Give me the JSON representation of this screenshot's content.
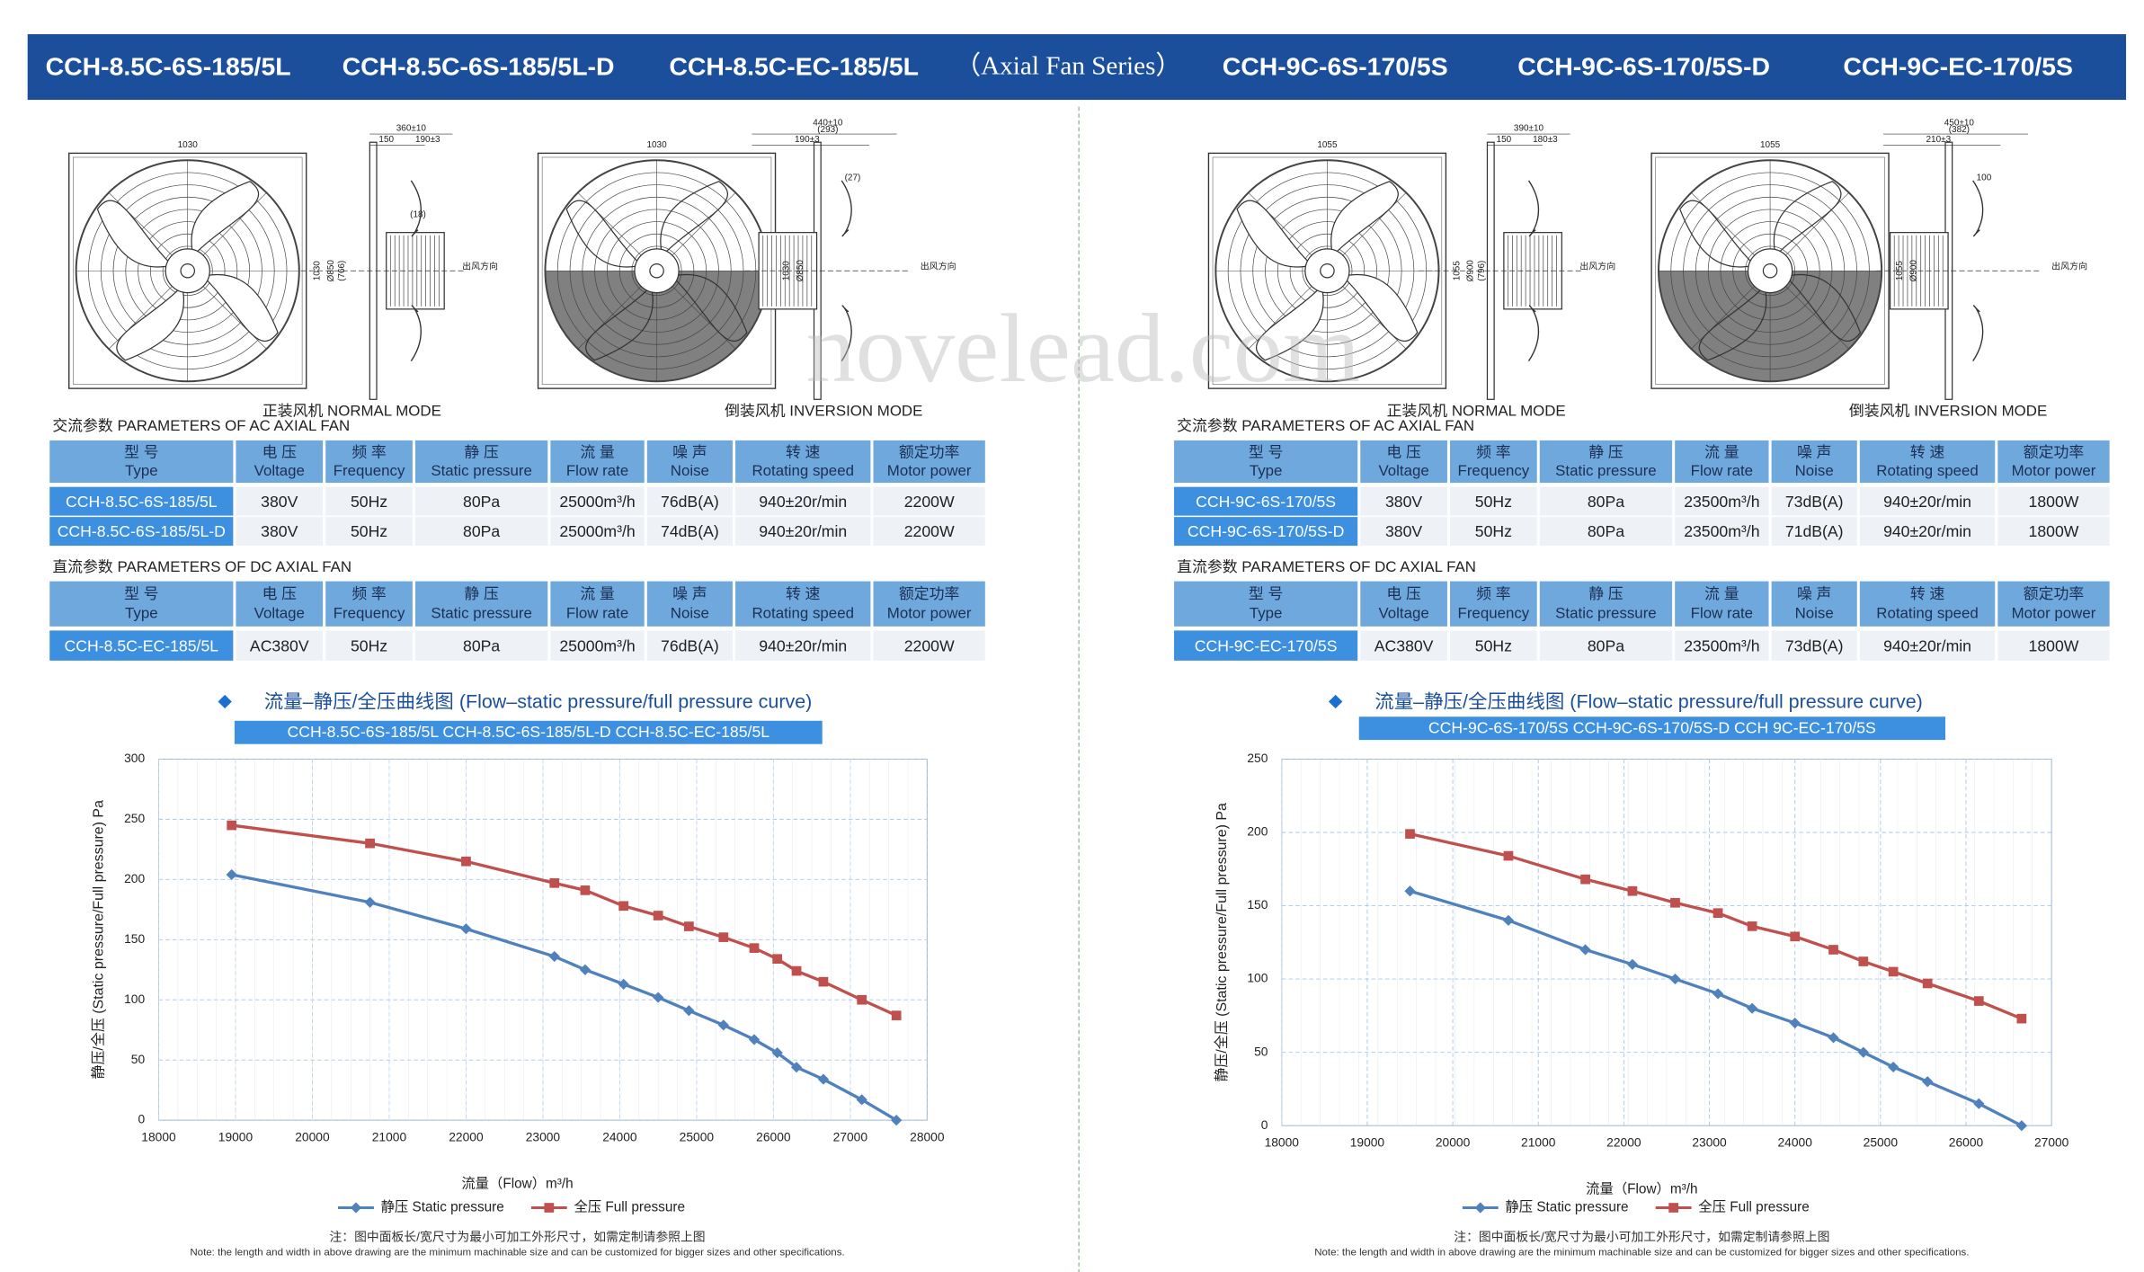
{
  "header": {
    "title_parts": [
      "CCH-8.5C-6S-185/5L",
      "CCH-8.5C-6S-185/5L-D",
      "CCH-8.5C-EC-185/5L",
      "（Axial Fan Series）",
      "CCH-9C-6S-170/5S",
      "CCH-9C-6S-170/5S-D",
      "CCH-9C-EC-170/5S"
    ]
  },
  "watermark": "novelead.com",
  "panels": [
    {
      "normal_label": "正装风机  NORMAL MODE",
      "inversion_label": "倒装风机  INVERSION MODE",
      "normal_dims": {
        "width": "1030",
        "height": "1030",
        "diameter": "Ø850",
        "inner": "(766)",
        "depth": "360±10",
        "frame": "150",
        "motor": "190±3",
        "gap": "(18)",
        "wind": "出风方向"
      },
      "inversion_dims": {
        "width": "1030",
        "height": "1030",
        "diameter": "Ø850",
        "depth": "440±10",
        "inner": "(293)",
        "motor": "190±3",
        "gap": "(27)",
        "wind": "出风方向"
      },
      "ac_section": "交流参数  PARAMETERS OF AC AXIAL FAN",
      "ac_table": {
        "headers": [
          [
            "型 号",
            "Type"
          ],
          [
            "电 压",
            "Voltage"
          ],
          [
            "频 率",
            "Frequency"
          ],
          [
            "静 压",
            "Static pressure"
          ],
          [
            "流 量",
            "Flow rate"
          ],
          [
            "噪 声",
            "Noise"
          ],
          [
            "转 速",
            "Rotating speed"
          ],
          [
            "额定功率",
            "Motor power"
          ]
        ],
        "rows": [
          [
            "CCH-8.5C-6S-185/5L",
            "380V",
            "50Hz",
            "80Pa",
            "25000m³/h",
            "76dB(A)",
            "940±20r/min",
            "2200W"
          ],
          [
            "CCH-8.5C-6S-185/5L-D",
            "380V",
            "50Hz",
            "80Pa",
            "25000m³/h",
            "74dB(A)",
            "940±20r/min",
            "2200W"
          ]
        ]
      },
      "dc_section": "直流参数  PARAMETERS OF DC AXIAL FAN",
      "dc_table": {
        "headers": [
          [
            "型 号",
            "Type"
          ],
          [
            "电 压",
            "Voltage"
          ],
          [
            "频 率",
            "Frequency"
          ],
          [
            "静 压",
            "Static pressure"
          ],
          [
            "流 量",
            "Flow rate"
          ],
          [
            "噪 声",
            "Noise"
          ],
          [
            "转 速",
            "Rotating speed"
          ],
          [
            "额定功率",
            "Motor power"
          ]
        ],
        "rows": [
          [
            "CCH-8.5C-EC-185/5L",
            "AC380V",
            "50Hz",
            "80Pa",
            "25000m³/h",
            "76dB(A)",
            "940±20r/min",
            "2200W"
          ]
        ]
      },
      "note_cn": "注：图中面板长/宽尺寸为最小可加工外形尺寸，如需定制请参照上图",
      "note_en": "Note: the length and width in above drawing are the minimum machinable size and can be customized for bigger sizes and other specifications."
    },
    {
      "normal_label": "正装风机  NORMAL MODE",
      "inversion_label": "倒装风机  INVERSION MODE",
      "normal_dims": {
        "width": "1055",
        "height": "1055",
        "diameter": "Ø900",
        "inner": "(796)",
        "depth": "390±10",
        "frame": "150",
        "motor": "180±3",
        "wind": "出风方向"
      },
      "inversion_dims": {
        "width": "1055",
        "height": "1055",
        "diameter": "Ø900",
        "depth": "450±10",
        "inner": "(382)",
        "motor": "210±3",
        "gap": "100",
        "wind": "出风方向"
      },
      "ac_section": "交流参数  PARAMETERS OF AC AXIAL FAN",
      "ac_table": {
        "headers": [
          [
            "型 号",
            "Type"
          ],
          [
            "电 压",
            "Voltage"
          ],
          [
            "频 率",
            "Frequency"
          ],
          [
            "静 压",
            "Static pressure"
          ],
          [
            "流 量",
            "Flow rate"
          ],
          [
            "噪 声",
            "Noise"
          ],
          [
            "转 速",
            "Rotating speed"
          ],
          [
            "额定功率",
            "Motor power"
          ]
        ],
        "rows": [
          [
            "CCH-9C-6S-170/5S",
            "380V",
            "50Hz",
            "80Pa",
            "23500m³/h",
            "73dB(A)",
            "940±20r/min",
            "1800W"
          ],
          [
            "CCH-9C-6S-170/5S-D",
            "380V",
            "50Hz",
            "80Pa",
            "23500m³/h",
            "71dB(A)",
            "940±20r/min",
            "1800W"
          ]
        ]
      },
      "dc_section": "直流参数  PARAMETERS OF DC AXIAL FAN",
      "dc_table": {
        "headers": [
          [
            "型 号",
            "Type"
          ],
          [
            "电 压",
            "Voltage"
          ],
          [
            "频 率",
            "Frequency"
          ],
          [
            "静 压",
            "Static pressure"
          ],
          [
            "流 量",
            "Flow rate"
          ],
          [
            "噪 声",
            "Noise"
          ],
          [
            "转 速",
            "Rotating speed"
          ],
          [
            "额定功率",
            "Motor power"
          ]
        ],
        "rows": [
          [
            "CCH-9C-EC-170/5S",
            "AC380V",
            "50Hz",
            "80Pa",
            "23500m³/h",
            "73dB(A)",
            "940±20r/min",
            "1800W"
          ]
        ]
      },
      "note_cn": "注：图中面板长/宽尺寸为最小可加工外形尺寸，如需定制请参照上图",
      "note_en": "Note: the length and width in above drawing are the minimum machinable size and can be customized for bigger sizes and other specifications."
    }
  ],
  "chart_data": [
    {
      "type": "line",
      "title": "流量–静压/全压曲线图 (Flow–static pressure/full pressure curve)",
      "subtitle": "CCH-8.5C-6S-185/5L  CCH-8.5C-6S-185/5L-D  CCH-8.5C-EC-185/5L",
      "x_label": "流量（Flow）m³/h",
      "y_label": "静压/全压 (Static pressure/Full pressure) Pa",
      "x": [
        18950,
        20750,
        22000,
        23150,
        23550,
        24050,
        24500,
        24900,
        25350,
        25750,
        26050,
        26300,
        26650,
        27150,
        27600
      ],
      "series": [
        {
          "name": "静压 Static pressure",
          "color": "#4f81bd",
          "marker": "diamond",
          "values": [
            204,
            181,
            159,
            136,
            125,
            113,
            102,
            91,
            79,
            67,
            56,
            44,
            34,
            17,
            0
          ]
        },
        {
          "name": "全压 Full pressure",
          "color": "#c0504d",
          "marker": "square",
          "values": [
            245,
            230,
            215,
            197,
            191,
            178,
            170,
            161,
            152,
            143,
            134,
            124,
            115,
            100,
            87
          ]
        }
      ],
      "xlim": [
        18000,
        28000
      ],
      "xticks": [
        18000,
        19000,
        20000,
        21000,
        22000,
        23000,
        24000,
        25000,
        26000,
        27000,
        28000
      ],
      "ylim": [
        0,
        300
      ],
      "yticks": [
        0,
        50,
        100,
        150,
        200,
        250,
        300
      ],
      "grid": true,
      "legend": "bottom"
    },
    {
      "type": "line",
      "title": "流量–静压/全压曲线图 (Flow–static pressure/full pressure curve)",
      "subtitle": "CCH-9C-6S-170/5S  CCH-9C-6S-170/5S-D  CCH 9C-EC-170/5S",
      "x_label": "流量（Flow）m³/h",
      "y_label": "静压/全压 (Static pressure/Full pressure) Pa",
      "x": [
        19500,
        20650,
        21550,
        22100,
        22600,
        23100,
        23500,
        24000,
        24450,
        24800,
        25150,
        25550,
        26150,
        26650
      ],
      "series": [
        {
          "name": "静压 Static pressure",
          "color": "#4f81bd",
          "marker": "diamond",
          "values": [
            160,
            140,
            120,
            110,
            100,
            90,
            80,
            70,
            60,
            50,
            40,
            30,
            15,
            0
          ]
        },
        {
          "name": "全压 Full pressure",
          "color": "#c0504d",
          "marker": "square",
          "values": [
            199,
            184,
            168,
            160,
            152,
            145,
            136,
            129,
            120,
            112,
            105,
            97,
            85,
            73
          ]
        }
      ],
      "xlim": [
        18000,
        27000
      ],
      "xticks": [
        18000,
        19000,
        20000,
        21000,
        22000,
        23000,
        24000,
        25000,
        26000,
        27000
      ],
      "ylim": [
        0,
        250
      ],
      "yticks": [
        0,
        50,
        100,
        150,
        200,
        250
      ],
      "grid": true,
      "legend": "bottom"
    }
  ]
}
